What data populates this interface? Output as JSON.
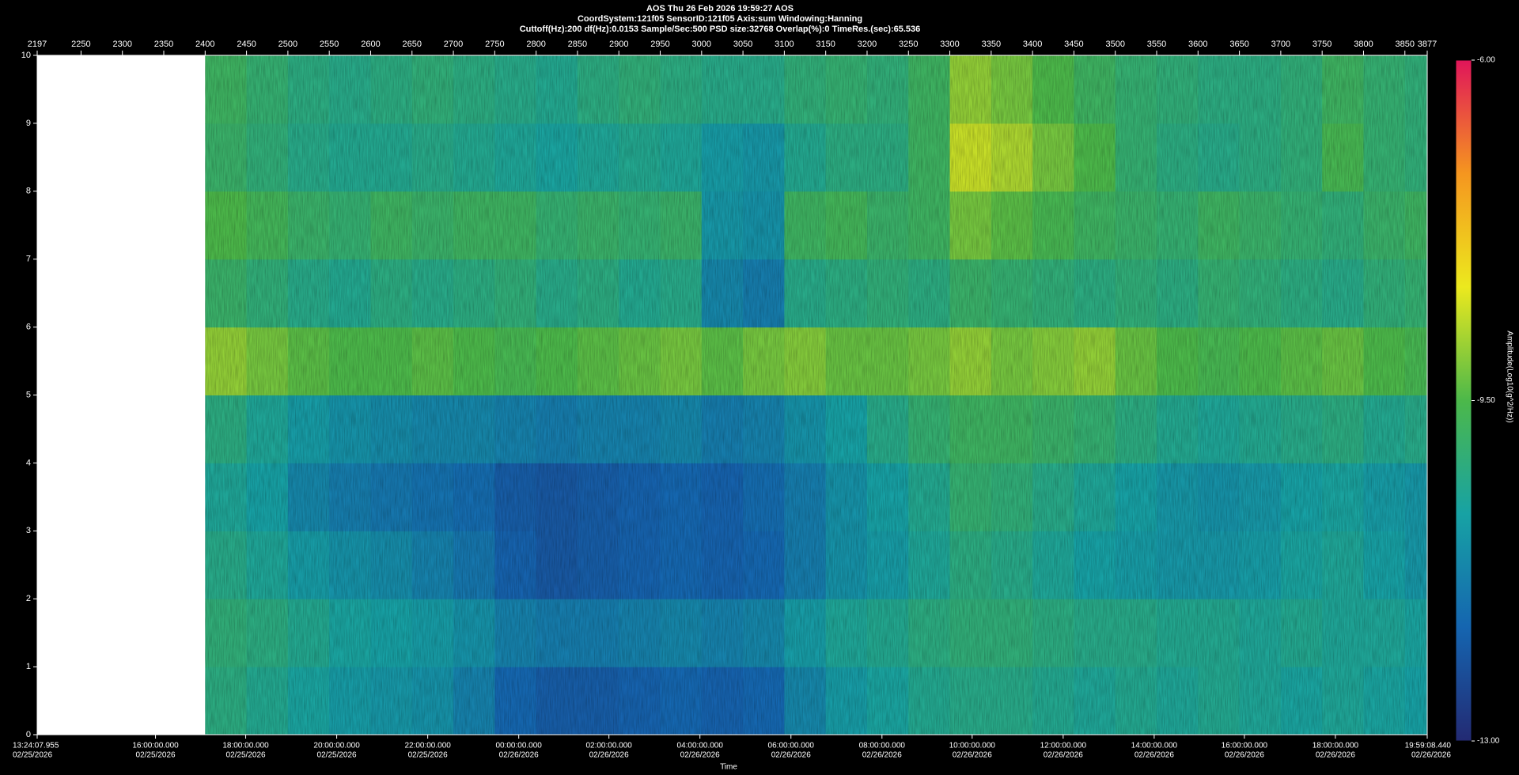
{
  "chart_data": {
    "type": "heatmap",
    "title": "AOS  Thu 26 Feb 2026 19:59:27  AOS",
    "subtitle": "CoordSystem:121f05   SensorID:121f05   Axis:sum   Windowing:Hanning",
    "info": "Cuttoff(Hz):200     df(Hz):0.0153     Sample/Sec:500     PSD size:32768     Overlap(%):0     TimeRes.(sec):65.536",
    "xlabel": "Time",
    "xlim": [
      2197,
      3877
    ],
    "xticks": [
      2197,
      2250,
      2300,
      2350,
      2400,
      2450,
      2500,
      2550,
      2600,
      2650,
      2700,
      2750,
      2800,
      2850,
      2900,
      2950,
      3000,
      3050,
      3100,
      3150,
      3200,
      3250,
      3300,
      3350,
      3400,
      3450,
      3500,
      3550,
      3600,
      3650,
      3700,
      3750,
      3800,
      3850,
      3877
    ],
    "time_ticks": [
      {
        "value": 2197,
        "label": "13:24:07.955",
        "date": "02/25/2026"
      },
      {
        "value": 2340,
        "label": "16:00:00.000",
        "date": "02/25/2026"
      },
      {
        "value": 2449,
        "label": "18:00:00.000",
        "date": "02/25/2026"
      },
      {
        "value": 2559,
        "label": "20:00:00.000",
        "date": "02/25/2026"
      },
      {
        "value": 2669,
        "label": "22:00:00.000",
        "date": "02/25/2026"
      },
      {
        "value": 2779,
        "label": "00:00:00.000",
        "date": "02/26/2026"
      },
      {
        "value": 2888,
        "label": "02:00:00.000",
        "date": "02/26/2026"
      },
      {
        "value": 2998,
        "label": "04:00:00.000",
        "date": "02/26/2026"
      },
      {
        "value": 3108,
        "label": "06:00:00.000",
        "date": "02/26/2026"
      },
      {
        "value": 3218,
        "label": "08:00:00.000",
        "date": "02/26/2026"
      },
      {
        "value": 3327,
        "label": "10:00:00.000",
        "date": "02/26/2026"
      },
      {
        "value": 3437,
        "label": "12:00:00.000",
        "date": "02/26/2026"
      },
      {
        "value": 3547,
        "label": "14:00:00.000",
        "date": "02/26/2026"
      },
      {
        "value": 3656,
        "label": "16:00:00.000",
        "date": "02/26/2026"
      },
      {
        "value": 3766,
        "label": "18:00:00.000",
        "date": "02/26/2026"
      },
      {
        "value": 3877,
        "label": "19:59:08.440",
        "date": "02/26/2026"
      }
    ],
    "ylim": [
      0,
      10
    ],
    "yticks": [
      0,
      1,
      2,
      3,
      4,
      5,
      6,
      7,
      8,
      9,
      10
    ],
    "x_edges": [
      2197,
      2400,
      2450,
      2500,
      2550,
      2600,
      2650,
      2700,
      2750,
      2800,
      2850,
      2900,
      2950,
      3000,
      3050,
      3100,
      3150,
      3200,
      3250,
      3300,
      3350,
      3400,
      3450,
      3500,
      3550,
      3600,
      3650,
      3700,
      3750,
      3800,
      3850,
      3877
    ],
    "y_edges": [
      0,
      1,
      2,
      3,
      4,
      5,
      6,
      7,
      8,
      9,
      10
    ],
    "values": [
      [
        null,
        -10.2,
        -10.4,
        -10.6,
        -10.8,
        -10.9,
        -11.0,
        -11.3,
        -11.8,
        -12.0,
        -12.0,
        -11.9,
        -11.8,
        -11.9,
        -11.8,
        -11.2,
        -10.8,
        -10.6,
        -10.4,
        -10.3,
        -10.3,
        -10.4,
        -10.5,
        -10.4,
        -10.5,
        -10.4,
        -10.5,
        -10.6,
        -10.5,
        -10.6,
        -10.7
      ],
      [
        null,
        -10.1,
        -10.2,
        -10.4,
        -10.6,
        -10.7,
        -10.8,
        -11.0,
        -11.3,
        -11.4,
        -11.4,
        -11.3,
        -11.2,
        -11.3,
        -11.2,
        -10.8,
        -10.5,
        -10.4,
        -10.2,
        -10.1,
        -10.1,
        -10.2,
        -10.3,
        -10.3,
        -10.4,
        -10.4,
        -10.5,
        -10.4,
        -10.5,
        -10.5,
        -10.6
      ],
      [
        null,
        -10.3,
        -10.5,
        -10.8,
        -11.0,
        -11.1,
        -11.3,
        -11.5,
        -11.9,
        -12.1,
        -12.0,
        -11.9,
        -11.8,
        -11.9,
        -11.8,
        -11.4,
        -11.0,
        -10.8,
        -10.5,
        -10.2,
        -10.3,
        -10.5,
        -10.7,
        -10.8,
        -10.9,
        -10.9,
        -10.8,
        -10.6,
        -10.5,
        -10.7,
        -10.9
      ],
      [
        null,
        -10.5,
        -10.7,
        -11.2,
        -11.4,
        -11.5,
        -11.6,
        -11.7,
        -12.0,
        -12.1,
        -12.0,
        -11.9,
        -11.8,
        -11.9,
        -11.7,
        -11.4,
        -11.0,
        -10.7,
        -10.4,
        -10.0,
        -10.1,
        -10.3,
        -10.5,
        -10.7,
        -10.9,
        -11.0,
        -10.9,
        -10.7,
        -10.6,
        -10.8,
        -10.9
      ],
      [
        null,
        -10.2,
        -10.5,
        -10.8,
        -11.0,
        -11.1,
        -11.2,
        -11.2,
        -11.3,
        -11.4,
        -11.3,
        -11.3,
        -11.2,
        -11.4,
        -11.3,
        -11.0,
        -10.7,
        -10.3,
        -10.0,
        -9.8,
        -9.8,
        -9.9,
        -10.0,
        -10.2,
        -10.4,
        -10.5,
        -10.4,
        -10.3,
        -10.2,
        -10.4,
        -10.3
      ],
      [
        null,
        -9.0,
        -9.2,
        -9.4,
        -9.5,
        -9.5,
        -9.4,
        -9.5,
        -9.6,
        -9.5,
        -9.4,
        -9.3,
        -9.2,
        -9.4,
        -9.2,
        -9.1,
        -9.3,
        -9.3,
        -9.2,
        -9.0,
        -9.2,
        -9.1,
        -9.0,
        -9.3,
        -9.5,
        -9.6,
        -9.5,
        -9.4,
        -9.3,
        -9.5,
        -9.6
      ],
      [
        null,
        -9.9,
        -10.1,
        -10.3,
        -10.4,
        -10.2,
        -10.3,
        -10.2,
        -10.1,
        -10.3,
        -10.2,
        -10.4,
        -10.3,
        -11.2,
        -11.4,
        -10.3,
        -10.2,
        -10.1,
        -10.2,
        -9.9,
        -10.0,
        -10.1,
        -10.2,
        -10.1,
        -10.2,
        -10.0,
        -10.1,
        -10.2,
        -10.3,
        -10.1,
        -10.0
      ],
      [
        null,
        -9.5,
        -9.7,
        -9.9,
        -10.0,
        -9.8,
        -9.9,
        -9.8,
        -9.8,
        -10.0,
        -9.9,
        -10.0,
        -9.9,
        -10.9,
        -11.0,
        -9.8,
        -9.7,
        -9.9,
        -9.8,
        -9.2,
        -9.4,
        -9.6,
        -9.8,
        -9.9,
        -10.0,
        -9.8,
        -9.9,
        -10.0,
        -10.1,
        -9.9,
        -9.8
      ],
      [
        null,
        -9.9,
        -10.1,
        -10.3,
        -10.4,
        -10.4,
        -10.3,
        -10.4,
        -10.5,
        -10.6,
        -10.5,
        -10.4,
        -10.5,
        -10.8,
        -10.9,
        -10.4,
        -10.2,
        -10.2,
        -9.8,
        -8.6,
        -8.8,
        -9.2,
        -9.5,
        -10.0,
        -10.2,
        -10.3,
        -10.2,
        -10.1,
        -9.6,
        -10.0,
        -10.1
      ],
      [
        null,
        -9.8,
        -10.0,
        -10.2,
        -10.3,
        -10.2,
        -10.1,
        -10.2,
        -10.3,
        -10.4,
        -10.2,
        -10.1,
        -10.2,
        -10.3,
        -10.3,
        -10.1,
        -10.0,
        -10.1,
        -9.8,
        -9.0,
        -9.2,
        -9.5,
        -9.8,
        -10.0,
        -10.1,
        -10.2,
        -10.2,
        -10.1,
        -9.8,
        -10.0,
        -10.1
      ]
    ],
    "colormap": [
      "#232a73",
      "#1565b0",
      "#17a2a4",
      "#4cb84a",
      "#ece91e",
      "#f5961f",
      "#e0155a"
    ],
    "colorbar": {
      "label": "Amplitude(Log10(g^2/Hz))",
      "range": [
        -13,
        -6
      ],
      "ticks": [
        {
          "value": -13,
          "label": "-13.00"
        },
        {
          "value": -9.5,
          "label": "-9.50"
        },
        {
          "value": -6,
          "label": "-6.00"
        }
      ]
    }
  }
}
